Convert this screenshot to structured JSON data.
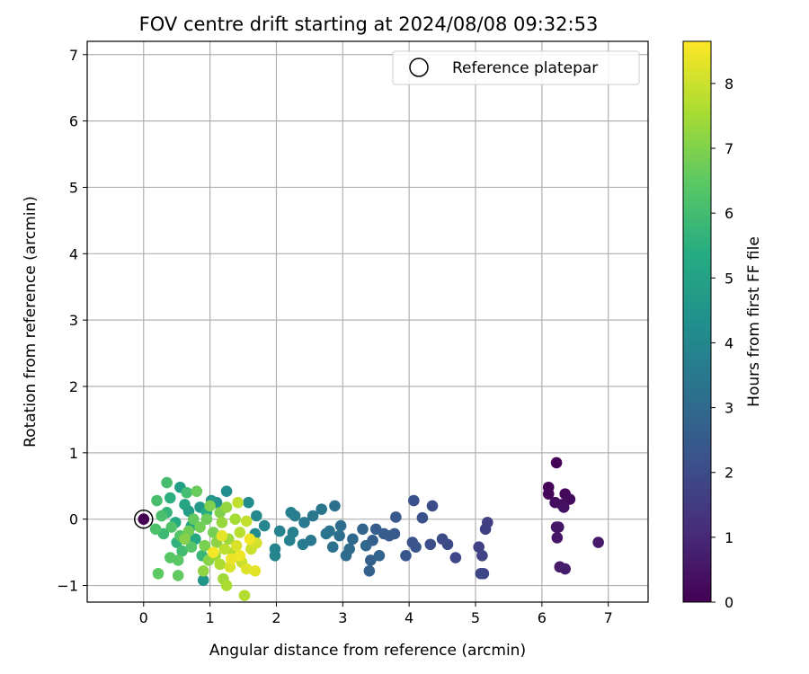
{
  "chart_data": {
    "type": "scatter",
    "title": "FOV centre drift starting at 2024/08/08 09:32:53",
    "xlabel": "Angular distance from reference (arcmin)",
    "ylabel": "Rotation from reference (arcmin)",
    "xlim": [
      -0.85,
      7.6
    ],
    "ylim": [
      -1.25,
      7.2
    ],
    "xticks": [
      0,
      1,
      2,
      3,
      4,
      5,
      6,
      7
    ],
    "yticks": [
      -1,
      0,
      1,
      2,
      3,
      4,
      5,
      6,
      7
    ],
    "grid": true,
    "legend": {
      "position": "top-right",
      "entries": [
        "Reference platepar"
      ]
    },
    "colorbar": {
      "label": "Hours from first FF file",
      "range": [
        0,
        8.65
      ],
      "ticks": [
        0,
        1,
        2,
        3,
        4,
        5,
        6,
        7,
        8
      ],
      "colormap": "viridis"
    },
    "reference_point": {
      "x": 0,
      "y": 0
    },
    "series": [
      {
        "points": [
          {
            "x": 6.22,
            "y": 0.85,
            "c": 0.05
          },
          {
            "x": 6.1,
            "y": 0.48,
            "c": 0.1
          },
          {
            "x": 6.1,
            "y": 0.38,
            "c": 0.15
          },
          {
            "x": 6.35,
            "y": 0.38,
            "c": 0.2
          },
          {
            "x": 6.42,
            "y": 0.3,
            "c": 0.25
          },
          {
            "x": 6.2,
            "y": 0.25,
            "c": 0.3
          },
          {
            "x": 6.3,
            "y": 0.22,
            "c": 0.35
          },
          {
            "x": 6.33,
            "y": 0.18,
            "c": 0.4
          },
          {
            "x": 6.22,
            "y": -0.12,
            "c": 0.45
          },
          {
            "x": 6.25,
            "y": -0.12,
            "c": 0.5
          },
          {
            "x": 6.23,
            "y": -0.28,
            "c": 0.55
          },
          {
            "x": 6.85,
            "y": -0.35,
            "c": 0.6
          },
          {
            "x": 6.27,
            "y": -0.72,
            "c": 0.65
          },
          {
            "x": 6.35,
            "y": -0.75,
            "c": 0.7
          },
          {
            "x": 5.18,
            "y": -0.05,
            "c": 1.6
          },
          {
            "x": 5.15,
            "y": -0.15,
            "c": 1.65
          },
          {
            "x": 5.05,
            "y": -0.42,
            "c": 1.7
          },
          {
            "x": 5.1,
            "y": -0.55,
            "c": 1.75
          },
          {
            "x": 5.08,
            "y": -0.82,
            "c": 1.8
          },
          {
            "x": 5.12,
            "y": -0.82,
            "c": 1.85
          },
          {
            "x": 4.7,
            "y": -0.58,
            "c": 1.9
          },
          {
            "x": 4.58,
            "y": -0.38,
            "c": 1.95
          },
          {
            "x": 4.5,
            "y": -0.3,
            "c": 2.0
          },
          {
            "x": 4.35,
            "y": 0.2,
            "c": 2.05
          },
          {
            "x": 4.32,
            "y": -0.38,
            "c": 2.1
          },
          {
            "x": 4.2,
            "y": 0.02,
            "c": 2.15
          },
          {
            "x": 4.07,
            "y": 0.28,
            "c": 2.2
          },
          {
            "x": 4.05,
            "y": -0.35,
            "c": 2.25
          },
          {
            "x": 4.1,
            "y": -0.42,
            "c": 2.3
          },
          {
            "x": 3.95,
            "y": -0.55,
            "c": 2.35
          },
          {
            "x": 3.8,
            "y": 0.03,
            "c": 2.4
          },
          {
            "x": 3.78,
            "y": -0.22,
            "c": 2.45
          },
          {
            "x": 3.7,
            "y": -0.25,
            "c": 2.5
          },
          {
            "x": 3.62,
            "y": -0.22,
            "c": 2.55
          },
          {
            "x": 3.5,
            "y": -0.15,
            "c": 2.6
          },
          {
            "x": 3.45,
            "y": -0.32,
            "c": 2.65
          },
          {
            "x": 3.42,
            "y": -0.62,
            "c": 2.7
          },
          {
            "x": 3.4,
            "y": -0.78,
            "c": 2.75
          },
          {
            "x": 3.55,
            "y": -0.55,
            "c": 2.8
          },
          {
            "x": 3.3,
            "y": -0.15,
            "c": 2.85
          },
          {
            "x": 3.35,
            "y": -0.4,
            "c": 2.9
          },
          {
            "x": 3.15,
            "y": -0.3,
            "c": 2.95
          },
          {
            "x": 3.1,
            "y": -0.45,
            "c": 3.0
          },
          {
            "x": 3.05,
            "y": -0.55,
            "c": 3.05
          },
          {
            "x": 2.97,
            "y": -0.1,
            "c": 3.1
          },
          {
            "x": 2.95,
            "y": -0.25,
            "c": 3.15
          },
          {
            "x": 2.88,
            "y": 0.2,
            "c": 3.2
          },
          {
            "x": 2.85,
            "y": -0.42,
            "c": 3.25
          },
          {
            "x": 2.8,
            "y": -0.18,
            "c": 3.3
          },
          {
            "x": 2.75,
            "y": -0.22,
            "c": 3.35
          },
          {
            "x": 2.68,
            "y": 0.15,
            "c": 3.4
          },
          {
            "x": 2.55,
            "y": 0.05,
            "c": 3.45
          },
          {
            "x": 2.52,
            "y": -0.32,
            "c": 3.5
          },
          {
            "x": 2.42,
            "y": -0.05,
            "c": 3.55
          },
          {
            "x": 2.4,
            "y": -0.38,
            "c": 3.6
          },
          {
            "x": 2.28,
            "y": 0.05,
            "c": 3.65
          },
          {
            "x": 2.22,
            "y": 0.1,
            "c": 3.7
          },
          {
            "x": 2.25,
            "y": -0.2,
            "c": 3.75
          },
          {
            "x": 2.2,
            "y": -0.32,
            "c": 3.8
          },
          {
            "x": 2.05,
            "y": -0.18,
            "c": 3.85
          },
          {
            "x": 1.98,
            "y": -0.45,
            "c": 3.9
          },
          {
            "x": 1.98,
            "y": -0.55,
            "c": 3.95
          },
          {
            "x": 1.82,
            "y": -0.1,
            "c": 4.0
          },
          {
            "x": 1.7,
            "y": 0.05,
            "c": 4.05
          },
          {
            "x": 1.68,
            "y": -0.22,
            "c": 4.1
          },
          {
            "x": 1.58,
            "y": 0.25,
            "c": 4.2
          },
          {
            "x": 1.25,
            "y": 0.42,
            "c": 4.3
          },
          {
            "x": 1.1,
            "y": 0.25,
            "c": 4.4
          },
          {
            "x": 0.9,
            "y": -0.92,
            "c": 4.5
          },
          {
            "x": 1.02,
            "y": 0.28,
            "c": 4.6
          },
          {
            "x": 0.85,
            "y": 0.18,
            "c": 4.7
          },
          {
            "x": 0.68,
            "y": 0.12,
            "c": 4.8
          },
          {
            "x": 0.55,
            "y": 0.48,
            "c": 4.9
          },
          {
            "x": 0.72,
            "y": -0.1,
            "c": 5.0
          },
          {
            "x": 0.62,
            "y": 0.22,
            "c": 5.1
          },
          {
            "x": 0.78,
            "y": -0.3,
            "c": 5.2
          },
          {
            "x": 0.48,
            "y": -0.05,
            "c": 5.3
          },
          {
            "x": 0.95,
            "y": 0.1,
            "c": 5.4
          },
          {
            "x": 0.4,
            "y": 0.32,
            "c": 5.5
          },
          {
            "x": 0.5,
            "y": -0.35,
            "c": 5.6
          },
          {
            "x": 0.35,
            "y": 0.1,
            "c": 5.7
          },
          {
            "x": 0.88,
            "y": -0.55,
            "c": 5.8
          },
          {
            "x": 0.3,
            "y": -0.22,
            "c": 5.9
          },
          {
            "x": 0.58,
            "y": -0.48,
            "c": 5.95
          },
          {
            "x": 0.65,
            "y": 0.4,
            "c": 6.0
          },
          {
            "x": 0.35,
            "y": 0.55,
            "c": 6.05
          },
          {
            "x": 0.2,
            "y": 0.28,
            "c": 6.1
          },
          {
            "x": 0.27,
            "y": 0.05,
            "c": 6.15
          },
          {
            "x": 0.18,
            "y": -0.15,
            "c": 6.2
          },
          {
            "x": 0.42,
            "y": -0.12,
            "c": 6.25
          },
          {
            "x": 0.55,
            "y": -0.25,
            "c": 6.3
          },
          {
            "x": 0.72,
            "y": -0.42,
            "c": 6.35
          },
          {
            "x": 0.4,
            "y": -0.58,
            "c": 6.4
          },
          {
            "x": 0.52,
            "y": -0.62,
            "c": 6.45
          },
          {
            "x": 0.22,
            "y": -0.82,
            "c": 6.5
          },
          {
            "x": 0.52,
            "y": -0.85,
            "c": 6.55
          },
          {
            "x": 0.75,
            "y": 0.0,
            "c": 6.6
          },
          {
            "x": 0.8,
            "y": 0.42,
            "c": 6.65
          },
          {
            "x": 0.95,
            "y": 0.0,
            "c": 6.7
          },
          {
            "x": 0.68,
            "y": -0.18,
            "c": 6.75
          },
          {
            "x": 0.85,
            "y": -0.12,
            "c": 6.8
          },
          {
            "x": 1.05,
            "y": -0.2,
            "c": 6.85
          },
          {
            "x": 0.92,
            "y": -0.4,
            "c": 6.9
          },
          {
            "x": 1.0,
            "y": 0.2,
            "c": 6.95
          },
          {
            "x": 1.15,
            "y": 0.1,
            "c": 7.0
          },
          {
            "x": 0.62,
            "y": -0.3,
            "c": 7.05
          },
          {
            "x": 0.98,
            "y": -0.62,
            "c": 7.1
          },
          {
            "x": 1.1,
            "y": -0.35,
            "c": 7.15
          },
          {
            "x": 0.9,
            "y": -0.78,
            "c": 7.2
          },
          {
            "x": 1.25,
            "y": 0.18,
            "c": 7.25
          },
          {
            "x": 1.18,
            "y": -0.05,
            "c": 7.3
          },
          {
            "x": 1.08,
            "y": -0.55,
            "c": 7.35
          },
          {
            "x": 1.28,
            "y": -0.3,
            "c": 7.4
          },
          {
            "x": 1.2,
            "y": -0.9,
            "c": 7.45
          },
          {
            "x": 1.38,
            "y": 0.0,
            "c": 7.5
          },
          {
            "x": 1.25,
            "y": -1.0,
            "c": 7.55
          },
          {
            "x": 1.15,
            "y": -0.68,
            "c": 7.6
          },
          {
            "x": 1.35,
            "y": -0.5,
            "c": 7.65
          },
          {
            "x": 1.52,
            "y": -1.15,
            "c": 7.7
          },
          {
            "x": 1.45,
            "y": -0.2,
            "c": 7.75
          },
          {
            "x": 1.22,
            "y": -0.45,
            "c": 7.8
          },
          {
            "x": 1.42,
            "y": 0.25,
            "c": 7.85
          },
          {
            "x": 1.55,
            "y": -0.03,
            "c": 7.9
          },
          {
            "x": 1.48,
            "y": -0.65,
            "c": 7.95
          },
          {
            "x": 1.62,
            "y": -0.45,
            "c": 8.0
          },
          {
            "x": 1.7,
            "y": -0.36,
            "c": 8.1
          },
          {
            "x": 1.3,
            "y": -0.72,
            "c": 8.15
          },
          {
            "x": 1.4,
            "y": -0.4,
            "c": 8.2
          },
          {
            "x": 1.55,
            "y": -0.75,
            "c": 8.25
          },
          {
            "x": 1.68,
            "y": -0.78,
            "c": 8.3
          },
          {
            "x": 1.18,
            "y": -0.25,
            "c": 8.35
          },
          {
            "x": 1.32,
            "y": -0.6,
            "c": 8.4
          },
          {
            "x": 1.45,
            "y": -0.55,
            "c": 8.45
          },
          {
            "x": 1.6,
            "y": -0.3,
            "c": 8.5
          },
          {
            "x": 1.05,
            "y": -0.5,
            "c": 8.55
          }
        ]
      }
    ]
  }
}
